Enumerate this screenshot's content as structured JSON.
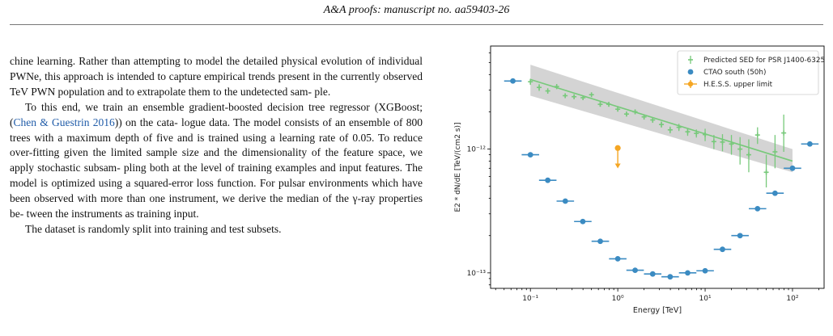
{
  "header": {
    "running_title": "A&A proofs: manuscript no. aa59403-26"
  },
  "body_text": {
    "para1_line1": "chine learning. Rather than attempting to model the detailed",
    "para1_line2": "physical evolution of individual PWNe, this approach is intended",
    "para1_line3": "to capture empirical trends present in the currently observed TeV",
    "para1_line4": "PWN population and to extrapolate them to the undetected sam-",
    "para1_line5": "ple.",
    "para2_line1": "To this end, we train an ensemble gradient-boosted decision",
    "para2_line2_pre": "tree regressor (XGBoost; (",
    "para2_line2_cite": "Chen & Guestrin 2016",
    "para2_line2_post": ")) on the cata-",
    "para2_line3": "logue data. The model consists of an ensemble of 800 trees with",
    "para2_line4": "a maximum depth of five and is trained using a learning rate of",
    "para2_line5": "0.05. To reduce over-fitting given the limited sample size and the",
    "para2_line6": "dimensionality of the feature space, we apply stochastic subsam-",
    "para2_line7": "pling both at the level of training examples and input features.",
    "para2_line8": "The model is optimized using a squared-error loss function. For",
    "para2_line9": "pulsar environments which have been observed with more than",
    "para2_line10": "one instrument, we derive the median of the γ-ray properties be-",
    "para2_line11": "tween the instruments as training input.",
    "para3_line1": "The dataset is randomly split into training and test subsets."
  },
  "chart_data": {
    "type": "scatter",
    "title": "",
    "xlabel": "Energy [TeV]",
    "ylabel": "E2 * dN/dE [TeV/(cm2 s)]",
    "x_scale": "log",
    "y_scale": "log",
    "xlim": [
      0.035,
      230
    ],
    "ylim": [
      7.5e-14,
      6.8e-12
    ],
    "x_ticks": [
      {
        "value": 0.1,
        "label": "10⁻¹"
      },
      {
        "value": 1,
        "label": "10⁰"
      },
      {
        "value": 10,
        "label": "10¹"
      },
      {
        "value": 100,
        "label": "10²"
      }
    ],
    "y_ticks": [
      {
        "value": 1e-13,
        "label": "10⁻¹³"
      },
      {
        "value": 1e-12,
        "label": "10⁻¹²"
      }
    ],
    "grid": false,
    "legend_position": "top-right",
    "band": {
      "x": [
        0.1,
        100
      ],
      "y_low": [
        2.7e-12,
        6.5e-13
      ],
      "y_high": [
        4.8e-12,
        1e-12
      ],
      "color": "#cccccc"
    },
    "series": [
      {
        "name": "Predicted SED for PSR J1400-6325",
        "color": "#77c97a",
        "marker": "plus",
        "fit_line": {
          "x": [
            0.1,
            100
          ],
          "y": [
            3.65e-12,
            8e-13
          ]
        },
        "points": [
          {
            "x": 0.1,
            "y": 3.5e-12,
            "yerr": [
              2e-13,
              2e-13
            ]
          },
          {
            "x": 0.126,
            "y": 3.15e-12,
            "yerr": [
              2e-13,
              2e-13
            ]
          },
          {
            "x": 0.158,
            "y": 2.95e-12,
            "yerr": [
              1.5e-13,
              1.5e-13
            ]
          },
          {
            "x": 0.2,
            "y": 3.2e-12,
            "yerr": [
              1.5e-13,
              1.5e-13
            ]
          },
          {
            "x": 0.25,
            "y": 2.7e-12,
            "yerr": [
              1.2e-13,
              1.2e-13
            ]
          },
          {
            "x": 0.316,
            "y": 2.65e-12,
            "yerr": [
              1.2e-13,
              1.2e-13
            ]
          },
          {
            "x": 0.4,
            "y": 2.6e-12,
            "yerr": [
              1e-13,
              1e-13
            ]
          },
          {
            "x": 0.5,
            "y": 2.75e-12,
            "yerr": [
              1e-13,
              1e-13
            ]
          },
          {
            "x": 0.63,
            "y": 2.3e-12,
            "yerr": [
              1e-13,
              1e-13
            ]
          },
          {
            "x": 0.79,
            "y": 2.3e-12,
            "yerr": [
              1e-13,
              1e-13
            ]
          },
          {
            "x": 1.0,
            "y": 2.1e-12,
            "yerr": [
              9e-14,
              9e-14
            ]
          },
          {
            "x": 1.26,
            "y": 1.92e-12,
            "yerr": [
              9e-14,
              9e-14
            ]
          },
          {
            "x": 1.58,
            "y": 2e-12,
            "yerr": [
              9e-14,
              9e-14
            ]
          },
          {
            "x": 2.0,
            "y": 1.82e-12,
            "yerr": [
              9e-14,
              9e-14
            ]
          },
          {
            "x": 2.51,
            "y": 1.72e-12,
            "yerr": [
              9e-14,
              9e-14
            ]
          },
          {
            "x": 3.16,
            "y": 1.58e-12,
            "yerr": [
              9e-14,
              9e-14
            ]
          },
          {
            "x": 3.98,
            "y": 1.43e-12,
            "yerr": [
              9e-14,
              9e-14
            ]
          },
          {
            "x": 5.01,
            "y": 1.5e-12,
            "yerr": [
              1e-13,
              1e-13
            ]
          },
          {
            "x": 6.31,
            "y": 1.38e-12,
            "yerr": [
              1e-13,
              1e-13
            ]
          },
          {
            "x": 7.94,
            "y": 1.34e-12,
            "yerr": [
              1e-13,
              1e-13
            ]
          },
          {
            "x": 10.0,
            "y": 1.31e-12,
            "yerr": [
              1.5e-13,
              1.5e-13
            ]
          },
          {
            "x": 12.6,
            "y": 1.15e-12,
            "yerr": [
              1.5e-13,
              1.5e-13
            ]
          },
          {
            "x": 15.8,
            "y": 1.14e-12,
            "yerr": [
              1.8e-13,
              1.8e-13
            ]
          },
          {
            "x": 20.0,
            "y": 1.1e-12,
            "yerr": [
              2e-13,
              2e-13
            ]
          },
          {
            "x": 25.1,
            "y": 1e-12,
            "yerr": [
              2.5e-13,
              2.5e-13
            ]
          },
          {
            "x": 31.6,
            "y": 9e-13,
            "yerr": [
              2.5e-13,
              3e-13
            ]
          },
          {
            "x": 39.8,
            "y": 1.3e-12,
            "yerr": [
              2e-13,
              2e-13
            ]
          },
          {
            "x": 50.1,
            "y": 6.5e-13,
            "yerr": [
              1.6e-13,
              2.5e-13
            ]
          },
          {
            "x": 63.1,
            "y": 9.5e-13,
            "yerr": [
              2.5e-13,
              3.5e-13
            ]
          },
          {
            "x": 79.4,
            "y": 1.35e-12,
            "yerr": [
              4e-13,
              5.5e-13
            ]
          }
        ]
      },
      {
        "name": "CTAO south (50h)",
        "color": "#3b8bc2",
        "marker": "circle",
        "points": [
          {
            "x": 0.063,
            "y": 3.55e-12
          },
          {
            "x": 0.1,
            "y": 9e-13
          },
          {
            "x": 0.158,
            "y": 5.6e-13
          },
          {
            "x": 0.251,
            "y": 3.8e-13
          },
          {
            "x": 0.398,
            "y": 2.6e-13
          },
          {
            "x": 0.631,
            "y": 1.8e-13
          },
          {
            "x": 1.0,
            "y": 1.3e-13
          },
          {
            "x": 1.58,
            "y": 1.05e-13
          },
          {
            "x": 2.51,
            "y": 9.8e-14
          },
          {
            "x": 3.98,
            "y": 9.3e-14
          },
          {
            "x": 6.31,
            "y": 1e-13
          },
          {
            "x": 10.0,
            "y": 1.04e-13
          },
          {
            "x": 15.8,
            "y": 1.55e-13
          },
          {
            "x": 25.1,
            "y": 2e-13
          },
          {
            "x": 39.8,
            "y": 3.3e-13
          },
          {
            "x": 63.1,
            "y": 4.4e-13
          },
          {
            "x": 100.0,
            "y": 7e-13
          },
          {
            "x": 158.0,
            "y": 1.1e-12
          }
        ]
      },
      {
        "name": "H.E.S.S. upper limit",
        "color": "#f5a623",
        "marker": "upper-limit",
        "points": [
          {
            "x": 1.0,
            "y": 1.02e-12,
            "down_to": 7.2e-13
          }
        ]
      }
    ]
  }
}
